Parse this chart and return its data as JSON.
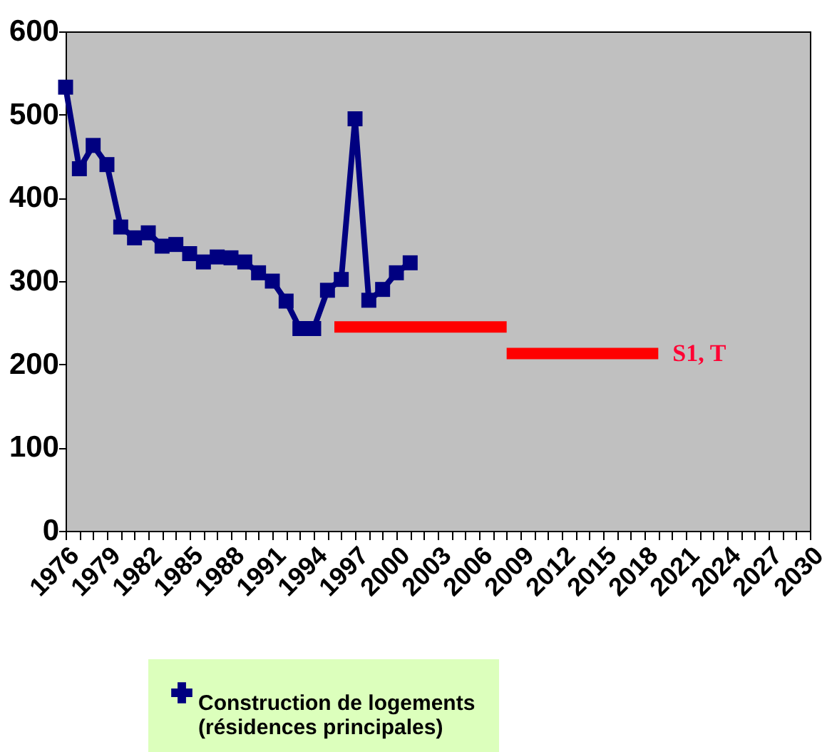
{
  "chart_data": {
    "type": "line",
    "x": [
      1976,
      1977,
      1978,
      1979,
      1980,
      1981,
      1982,
      1983,
      1984,
      1985,
      1986,
      1987,
      1988,
      1989,
      1990,
      1991,
      1992,
      1993,
      1994,
      1995,
      1996,
      1997,
      1998,
      1999,
      2000,
      2001
    ],
    "series": [
      {
        "name": "Construction de logements (résidences principales)",
        "color": "#000080",
        "marker": "square",
        "values": [
          533,
          435,
          463,
          440,
          365,
          352,
          358,
          342,
          344,
          333,
          323,
          329,
          328,
          323,
          310,
          300,
          276,
          243,
          243,
          289,
          302,
          495,
          277,
          290,
          310,
          322
        ]
      },
      {
        "color": "#ff0000",
        "marker": "none",
        "x": [
          1995.5,
          2008
        ],
        "values": [
          245,
          245
        ]
      },
      {
        "color": "#ff0000",
        "marker": "none",
        "x": [
          2008,
          2019
        ],
        "values": [
          213,
          213
        ]
      }
    ],
    "xlim": [
      1976,
      2030
    ],
    "xticks": [
      1976,
      {
        "value": 1977,
        "label": null
      },
      {
        "value": 1978,
        "label": null
      },
      1979,
      {
        "value": 1980,
        "label": null
      },
      {
        "value": 1981,
        "label": null
      },
      1982,
      {
        "value": 1983,
        "label": null
      },
      {
        "value": 1984,
        "label": null
      },
      1985,
      {
        "value": 1986,
        "label": null
      },
      {
        "value": 1987,
        "label": null
      },
      1988,
      {
        "value": 1989,
        "label": null
      },
      {
        "value": 1990,
        "label": null
      },
      1991,
      {
        "value": 1992,
        "label": null
      },
      {
        "value": 1993,
        "label": null
      },
      1994,
      {
        "value": 1995,
        "label": null
      },
      {
        "value": 1996,
        "label": null
      },
      1997,
      {
        "value": 1998,
        "label": null
      },
      {
        "value": 1999,
        "label": null
      },
      2000,
      {
        "value": 2001,
        "label": null
      },
      {
        "value": 2002,
        "label": null
      },
      2003,
      {
        "value": 2004,
        "label": null
      },
      {
        "value": 2005,
        "label": null
      },
      2006,
      {
        "value": 2007,
        "label": null
      },
      {
        "value": 2008,
        "label": null
      },
      2009,
      {
        "value": 2010,
        "label": null
      },
      {
        "value": 2011,
        "label": null
      },
      2012,
      {
        "value": 2013,
        "label": null
      },
      {
        "value": 2014,
        "label": null
      },
      2015,
      {
        "value": 2016,
        "label": null
      },
      {
        "value": 2017,
        "label": null
      },
      2018,
      {
        "value": 2019,
        "label": null
      },
      {
        "value": 2020,
        "label": null
      },
      2021,
      {
        "value": 2022,
        "label": null
      },
      {
        "value": 2023,
        "label": null
      },
      2024,
      {
        "value": 2025,
        "label": null
      },
      {
        "value": 2026,
        "label": null
      },
      2027,
      {
        "value": 2028,
        "label": null
      },
      {
        "value": 2029,
        "label": null
      },
      2030
    ],
    "ylim": [
      0,
      600
    ],
    "yticks": [
      0,
      100,
      200,
      300,
      400,
      500,
      600
    ],
    "grid": false,
    "legend": "bottom",
    "annotations": [
      {
        "text": "S1, T",
        "x": 2019,
        "y": 213
      }
    ]
  }
}
